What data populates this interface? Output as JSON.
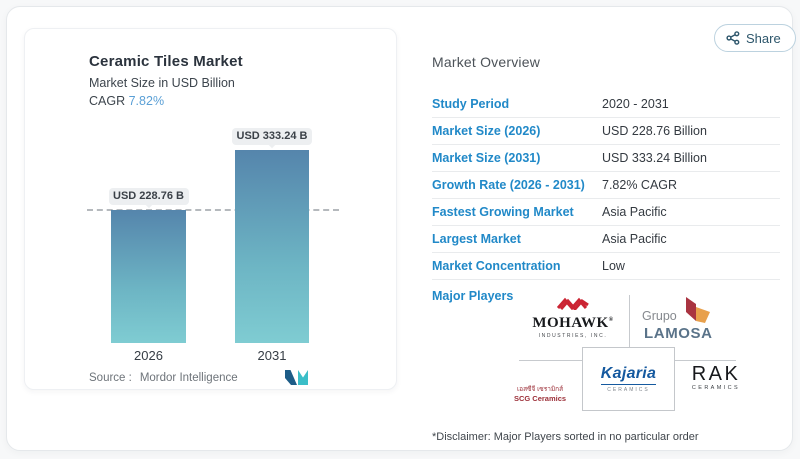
{
  "share": {
    "label": "Share"
  },
  "chart": {
    "title": "Ceramic Tiles Market",
    "subtitle": "Market Size in USD Billion",
    "cagr_label": "CAGR",
    "cagr_value": "7.82%",
    "source_label": "Source :",
    "source_value": "Mordor Intelligence"
  },
  "chart_data": {
    "type": "bar",
    "title": "Ceramic Tiles Market",
    "subtitle": "Market Size in USD Billion",
    "cagr": "7.82%",
    "unit": "USD Billion",
    "categories": [
      "2026",
      "2031"
    ],
    "values": [
      228.76,
      333.24
    ],
    "labels": [
      "USD 228.76 B",
      "USD 333.24 B"
    ],
    "reference_line": 228.76,
    "ylim": [
      0,
      360
    ],
    "grid": false,
    "legend": false,
    "source": "Mordor Intelligence"
  },
  "overview": {
    "title": "Market Overview",
    "rows": [
      {
        "label": "Study Period",
        "value": "2020 - 2031"
      },
      {
        "label": "Market Size (2026)",
        "value": "USD 228.76 Billion"
      },
      {
        "label": "Market Size (2031)",
        "value": "USD 333.24 Billion"
      },
      {
        "label": "Growth Rate (2026 - 2031)",
        "value": "7.82% CAGR"
      },
      {
        "label": "Fastest Growing Market",
        "value": "Asia Pacific"
      },
      {
        "label": "Largest Market",
        "value": "Asia Pacific"
      },
      {
        "label": "Market Concentration",
        "value": "Low"
      }
    ],
    "major_players_label": "Major Players",
    "disclaimer": "*Disclaimer: Major Players sorted in no particular order"
  },
  "players": {
    "mohawk": {
      "name": "MOHAWK",
      "reg": "®",
      "sub": "INDUSTRIES, INC."
    },
    "lamosa": {
      "top": "Grupo",
      "name": "LAMOSA"
    },
    "scg": {
      "line1": "เอสซีจี เซรามิกส์",
      "line2": "SCG Ceramics"
    },
    "kajaria": {
      "name": "Kajaria",
      "sub": "CERAMICS"
    },
    "rak": {
      "name": "RAK",
      "sub": "CERAMICS"
    }
  },
  "colors": {
    "accent_blue": "#2189c8",
    "cagr_blue": "#5ba0d6",
    "bar_top": "#5585ac",
    "bar_bottom": "#7fccd2",
    "badge_bg": "#edeff1",
    "share_text": "#2d566b",
    "mohawk_red": "#cb2433",
    "lamosa_maroon": "#a93441",
    "lamosa_orange": "#e8a04c",
    "scg_red": "#9c2f38",
    "kajaria_blue": "#15599f",
    "mordor_navy": "#1d5c87",
    "mordor_teal": "#3bbec8"
  }
}
